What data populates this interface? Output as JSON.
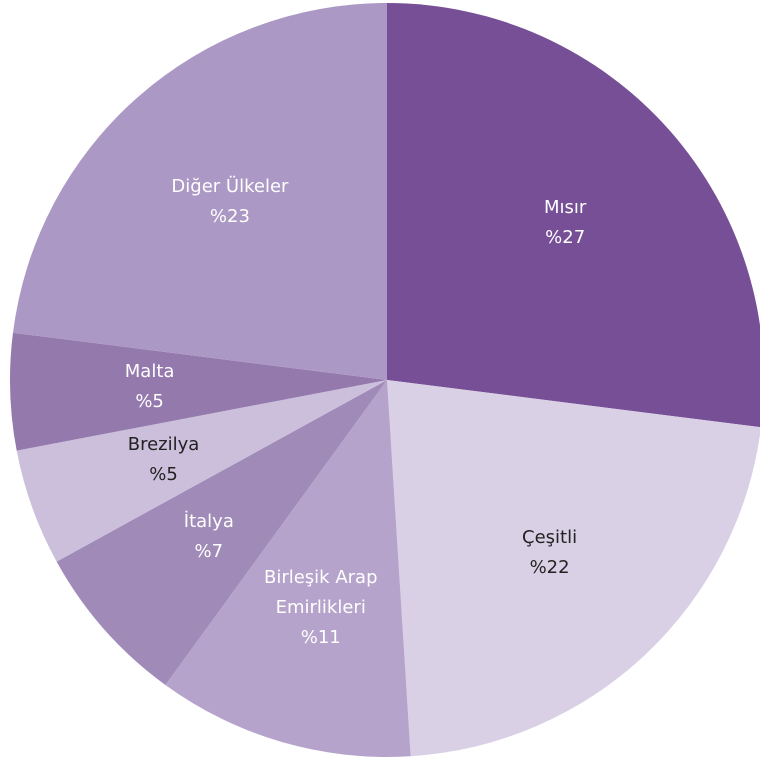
{
  "chart_data": {
    "type": "pie",
    "categories": [
      "Mısır",
      "Çeşitli",
      "Birleşik Arap Emirlikleri",
      "İtalya",
      "Brezilya",
      "Malta",
      "Diğer Ülkeler"
    ],
    "values": [
      27,
      22,
      11,
      7,
      5,
      5,
      23
    ],
    "value_labels": [
      "%27",
      "%22",
      "%11",
      "%7",
      "%5",
      "%5",
      "%23"
    ],
    "colors": [
      "#774f96",
      "#d9d0e5",
      "#b5a3cb",
      "#a08ab8",
      "#cbbfdb",
      "#9479ad",
      "#ab98c4"
    ]
  }
}
